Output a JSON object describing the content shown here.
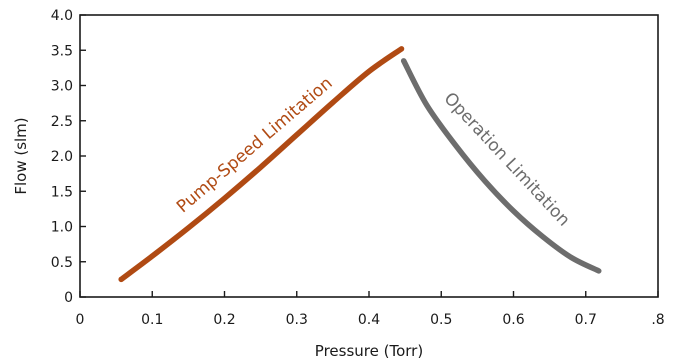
{
  "chart_data": {
    "type": "line",
    "xlabel": "Pressure (Torr)",
    "ylabel": "Flow (slm)",
    "xlim": [
      0,
      0.8
    ],
    "ylim": [
      0,
      4.0
    ],
    "x_ticks": [
      "0",
      "0.1",
      "0.2",
      "0.3",
      "0.4",
      "0.5",
      "0.6",
      "0.7",
      ".8"
    ],
    "y_ticks": [
      "0",
      "0.5",
      "1.0",
      "1.5",
      "2.0",
      "2.5",
      "3.0",
      "3.5",
      "4.0"
    ],
    "grid": false,
    "series": [
      {
        "name": "Pump-Speed Limitation",
        "color": "#b04a13",
        "x": [
          0.057,
          0.1,
          0.15,
          0.2,
          0.25,
          0.3,
          0.35,
          0.4,
          0.445
        ],
        "y": [
          0.25,
          0.58,
          0.98,
          1.4,
          1.84,
          2.3,
          2.76,
          3.2,
          3.52
        ]
      },
      {
        "name": "Operation Limitation",
        "color": "#6d6d6d",
        "x": [
          0.448,
          0.48,
          0.52,
          0.56,
          0.6,
          0.64,
          0.68,
          0.718
        ],
        "y": [
          3.35,
          2.72,
          2.15,
          1.65,
          1.22,
          0.86,
          0.56,
          0.37
        ]
      }
    ],
    "annotations": [
      {
        "text": "Pump-Speed Limitation",
        "color": "#b04a13"
      },
      {
        "text": "Operation Limitation",
        "color": "#6d6d6d"
      }
    ]
  }
}
